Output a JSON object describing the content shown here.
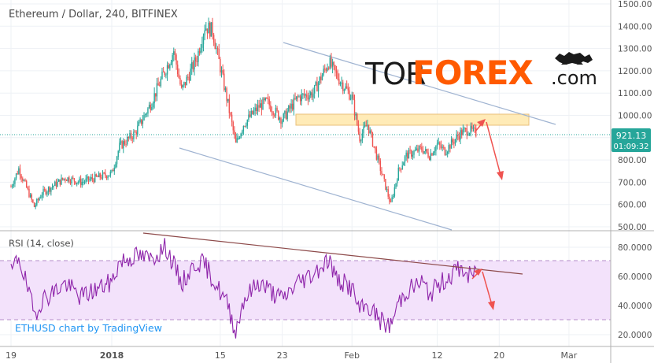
{
  "title": "Ethereum / Dollar, 240, BITFINEX",
  "watermark": {
    "part1": "TOR",
    "part2": "FOREX",
    "part3": ".com"
  },
  "price_tag": {
    "value": "921.13",
    "countdown": "01:09:32",
    "color": "#26a69a"
  },
  "rsi_label": "RSI (14, close)",
  "attribution": "ETHUSD chart by TradingView",
  "colors": {
    "up": "#26a69a",
    "down": "#ef5350",
    "channel": "#9fb3d1",
    "zone_fill": "#ffe9b0",
    "zone_stroke": "#e8b96a",
    "rsi_line": "#8e24aa",
    "rsi_band": "#f3e2fb",
    "trendline": "#8d4a4a",
    "arrow": "#ef5350",
    "axis_text": "#555555"
  },
  "price_axis": [
    "1500.00",
    "1400.00",
    "1300.00",
    "1200.00",
    "1100.00",
    "1000.00",
    "900.00",
    "800.00",
    "700.00",
    "600.00",
    "500.00"
  ],
  "rsi_axis": [
    "80.0000",
    "60.0000",
    "40.0000",
    "20.0000"
  ],
  "x_axis": [
    {
      "label": "19",
      "bold": false
    },
    {
      "label": "2018",
      "bold": true
    },
    {
      "label": "15",
      "bold": false
    },
    {
      "label": "23",
      "bold": false
    },
    {
      "label": "Feb",
      "bold": false
    },
    {
      "label": "12",
      "bold": false
    },
    {
      "label": "20",
      "bold": false
    },
    {
      "label": "Mar",
      "bold": false
    }
  ],
  "chart_data": {
    "type": "candlestick",
    "title": "Ethereum / Dollar, 240, BITFINEX",
    "symbol": "ETHUSD",
    "interval": "240",
    "ylim": [
      480,
      1520
    ],
    "last_price": 921.13,
    "resistance_zone": [
      960,
      1000
    ],
    "price_anchors": [
      [
        "Dec 19",
        680
      ],
      [
        "Dec 20",
        760
      ],
      [
        "Dec 22",
        590
      ],
      [
        "Dec 23",
        650
      ],
      [
        "Dec 26",
        720
      ],
      [
        "Dec 28",
        700
      ],
      [
        "Jan 01",
        740
      ],
      [
        "Jan 02",
        860
      ],
      [
        "Jan 04",
        920
      ],
      [
        "Jan 06",
        1050
      ],
      [
        "Jan 08",
        1210
      ],
      [
        "Jan 09",
        1290
      ],
      [
        "Jan 10",
        1110
      ],
      [
        "Jan 12",
        1260
      ],
      [
        "Jan 13",
        1400
      ],
      [
        "Jan 14",
        1380
      ],
      [
        "Jan 16",
        1050
      ],
      [
        "Jan 17",
        870
      ],
      [
        "Jan 18",
        960
      ],
      [
        "Jan 20",
        1040
      ],
      [
        "Jan 21",
        1060
      ],
      [
        "Jan 23",
        980
      ],
      [
        "Jan 25",
        1080
      ],
      [
        "Jan 27",
        1100
      ],
      [
        "Jan 29",
        1240
      ],
      [
        "Jan 30",
        1180
      ],
      [
        "Feb 01",
        1080
      ],
      [
        "Feb 02",
        900
      ],
      [
        "Feb 03",
        960
      ],
      [
        "Feb 04",
        840
      ],
      [
        "Feb 05",
        720
      ],
      [
        "Feb 06",
        600
      ],
      [
        "Feb 07",
        750
      ],
      [
        "Feb 08",
        820
      ],
      [
        "Feb 10",
        850
      ],
      [
        "Feb 11",
        820
      ],
      [
        "Feb 12",
        870
      ],
      [
        "Feb 13",
        840
      ],
      [
        "Feb 15",
        920
      ],
      [
        "Feb 16",
        935
      ],
      [
        "Feb 17",
        921
      ]
    ],
    "rsi_series": {
      "name": "RSI (14, close)",
      "ylim": [
        14,
        90
      ],
      "overbought": 70,
      "oversold": 30,
      "anchors": [
        [
          "Dec 19",
          62
        ],
        [
          "Dec 20",
          74
        ],
        [
          "Dec 22",
          34
        ],
        [
          "Dec 23",
          44
        ],
        [
          "Dec 26",
          55
        ],
        [
          "Dec 28",
          46
        ],
        [
          "Jan 01",
          56
        ],
        [
          "Jan 02",
          70
        ],
        [
          "Jan 04",
          74
        ],
        [
          "Jan 06",
          72
        ],
        [
          "Jan 08",
          80
        ],
        [
          "Jan 10",
          55
        ],
        [
          "Jan 12",
          70
        ],
        [
          "Jan 13",
          68
        ],
        [
          "Jan 16",
          40
        ],
        [
          "Jan 17",
          22
        ],
        [
          "Jan 18",
          44
        ],
        [
          "Jan 20",
          56
        ],
        [
          "Jan 23",
          44
        ],
        [
          "Jan 25",
          56
        ],
        [
          "Jan 27",
          62
        ],
        [
          "Jan 29",
          72
        ],
        [
          "Jan 30",
          58
        ],
        [
          "Feb 01",
          52
        ],
        [
          "Feb 02",
          36
        ],
        [
          "Feb 03",
          40
        ],
        [
          "Feb 05",
          28
        ],
        [
          "Feb 06",
          26
        ],
        [
          "Feb 07",
          42
        ],
        [
          "Feb 08",
          50
        ],
        [
          "Feb 10",
          56
        ],
        [
          "Feb 11",
          48
        ],
        [
          "Feb 13",
          58
        ],
        [
          "Feb 15",
          66
        ],
        [
          "Feb 16",
          60
        ],
        [
          "Feb 17",
          62
        ]
      ]
    },
    "annotations": [
      "descending channel (two parallel trendlines)",
      "horizontal resistance zone near 1000",
      "RSI descending trendline",
      "projected down arrows on price and RSI"
    ],
    "grid": true
  }
}
